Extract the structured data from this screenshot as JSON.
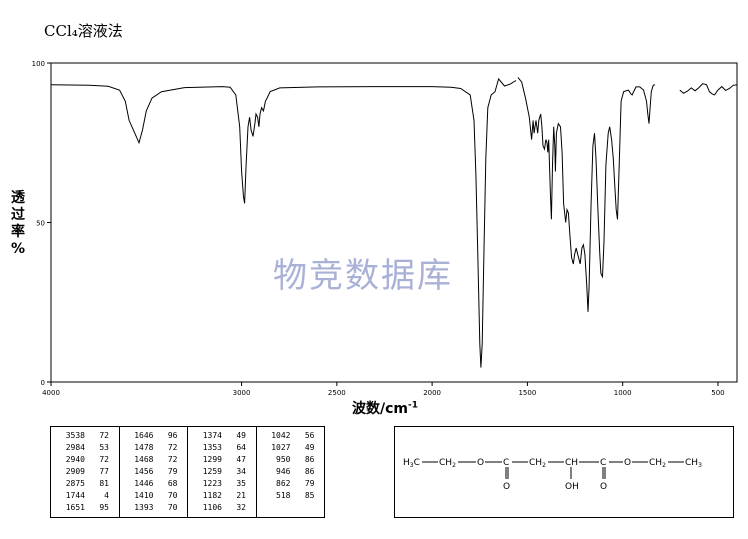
{
  "title": "CCl₄溶液法",
  "watermark": "物竞数据库",
  "ylabel_chars": [
    "透",
    "过",
    "率",
    "%"
  ],
  "xlabel_main": "波数/cm",
  "xlabel_sup": "-1",
  "chart_data": {
    "type": "line",
    "xlim": [
      4000,
      400
    ],
    "ylim": [
      0,
      100
    ],
    "x_ticks": [
      4000,
      3000,
      2500,
      2000,
      1500,
      1000,
      500
    ],
    "y_ticks": [
      0,
      50,
      100
    ],
    "grid": false,
    "segments": [
      [
        [
          4000,
          93.2
        ],
        [
          3800,
          93
        ],
        [
          3700,
          92.7
        ],
        [
          3640,
          91.5
        ],
        [
          3610,
          88
        ],
        [
          3590,
          82
        ],
        [
          3560,
          78
        ],
        [
          3538,
          75
        ],
        [
          3520,
          79
        ],
        [
          3500,
          85
        ],
        [
          3470,
          89
        ],
        [
          3420,
          91
        ],
        [
          3300,
          92.3
        ],
        [
          3100,
          92.6
        ],
        [
          3060,
          92.4
        ],
        [
          3030,
          90
        ],
        [
          3010,
          80
        ],
        [
          3000,
          66
        ],
        [
          2990,
          58
        ],
        [
          2984,
          56
        ],
        [
          2976,
          68
        ],
        [
          2966,
          80
        ],
        [
          2958,
          83
        ],
        [
          2950,
          79
        ],
        [
          2940,
          77
        ],
        [
          2930,
          81
        ],
        [
          2924,
          84
        ],
        [
          2916,
          83
        ],
        [
          2909,
          80
        ],
        [
          2903,
          84
        ],
        [
          2895,
          86
        ],
        [
          2885,
          85
        ],
        [
          2875,
          88
        ],
        [
          2866,
          89
        ],
        [
          2850,
          91
        ],
        [
          2800,
          92.2
        ],
        [
          2600,
          92.5
        ],
        [
          2300,
          92.6
        ],
        [
          2000,
          92.6
        ],
        [
          1900,
          92.4
        ],
        [
          1850,
          92
        ],
        [
          1800,
          90
        ],
        [
          1780,
          82
        ],
        [
          1770,
          65
        ],
        [
          1760,
          40
        ],
        [
          1750,
          12
        ],
        [
          1744,
          4.5
        ],
        [
          1737,
          12
        ],
        [
          1728,
          40
        ],
        [
          1718,
          70
        ],
        [
          1708,
          86
        ],
        [
          1690,
          90
        ],
        [
          1670,
          91
        ],
        [
          1651,
          95
        ],
        [
          1620,
          92.8
        ],
        [
          1590,
          93.4
        ],
        [
          1560,
          94.5
        ]
      ],
      [
        [
          1550,
          95.5
        ],
        [
          1530,
          94
        ],
        [
          1510,
          89
        ],
        [
          1490,
          83
        ],
        [
          1478,
          76
        ],
        [
          1470,
          82
        ],
        [
          1465,
          78
        ],
        [
          1460,
          80
        ],
        [
          1455,
          82
        ],
        [
          1446,
          78
        ],
        [
          1440,
          82
        ],
        [
          1430,
          84
        ],
        [
          1424,
          80
        ],
        [
          1418,
          74
        ],
        [
          1410,
          73
        ],
        [
          1403,
          76
        ],
        [
          1397,
          75
        ],
        [
          1393,
          72
        ],
        [
          1388,
          76
        ],
        [
          1380,
          60
        ],
        [
          1374,
          51
        ],
        [
          1368,
          68
        ],
        [
          1362,
          80
        ],
        [
          1356,
          74
        ],
        [
          1353,
          66
        ],
        [
          1348,
          78
        ],
        [
          1338,
          81
        ],
        [
          1326,
          80
        ],
        [
          1318,
          72
        ],
        [
          1310,
          56
        ],
        [
          1299,
          50
        ],
        [
          1292,
          54
        ],
        [
          1285,
          53
        ],
        [
          1277,
          46
        ],
        [
          1268,
          39
        ],
        [
          1259,
          37
        ],
        [
          1252,
          40
        ],
        [
          1244,
          42
        ],
        [
          1236,
          40
        ],
        [
          1223,
          37
        ],
        [
          1214,
          42
        ],
        [
          1206,
          43
        ],
        [
          1198,
          40
        ],
        [
          1188,
          30
        ],
        [
          1182,
          22
        ],
        [
          1176,
          30
        ],
        [
          1166,
          55
        ],
        [
          1156,
          74
        ],
        [
          1148,
          78
        ],
        [
          1140,
          70
        ],
        [
          1130,
          54
        ],
        [
          1120,
          40
        ],
        [
          1114,
          34
        ],
        [
          1106,
          33
        ],
        [
          1098,
          44
        ],
        [
          1088,
          68
        ],
        [
          1076,
          78
        ],
        [
          1068,
          80
        ],
        [
          1058,
          76
        ],
        [
          1049,
          70
        ],
        [
          1042,
          62
        ],
        [
          1034,
          54
        ],
        [
          1027,
          51
        ],
        [
          1018,
          68
        ],
        [
          1008,
          88
        ],
        [
          995,
          91
        ],
        [
          970,
          91.5
        ],
        [
          955,
          90.2
        ],
        [
          950,
          90
        ],
        [
          946,
          90.6
        ],
        [
          930,
          92.5
        ],
        [
          910,
          92.5
        ],
        [
          890,
          91.5
        ],
        [
          875,
          88
        ],
        [
          868,
          84
        ],
        [
          862,
          81
        ],
        [
          856,
          86
        ],
        [
          850,
          91
        ],
        [
          840,
          93
        ],
        [
          830,
          93.2
        ]
      ],
      [
        [
          700,
          91.5
        ],
        [
          680,
          90.5
        ],
        [
          660,
          91.2
        ],
        [
          640,
          92.2
        ],
        [
          620,
          91.3
        ],
        [
          600,
          92.3
        ],
        [
          580,
          93.5
        ],
        [
          560,
          93.2
        ],
        [
          545,
          91
        ],
        [
          530,
          90.3
        ],
        [
          518,
          90
        ],
        [
          500,
          91.5
        ],
        [
          480,
          92.6
        ],
        [
          460,
          91.4
        ],
        [
          440,
          92
        ],
        [
          420,
          93
        ],
        [
          400,
          93.2
        ]
      ]
    ]
  },
  "peak_table": [
    [
      [
        "3538",
        "72"
      ],
      [
        "2984",
        "53"
      ],
      [
        "2940",
        "72"
      ],
      [
        "2909",
        "77"
      ],
      [
        "2875",
        "81"
      ],
      [
        "1744",
        "4"
      ],
      [
        "1651",
        "95"
      ]
    ],
    [
      [
        "1646",
        "96"
      ],
      [
        "1478",
        "72"
      ],
      [
        "1468",
        "72"
      ],
      [
        "1456",
        "79"
      ],
      [
        "1446",
        "68"
      ],
      [
        "1410",
        "70"
      ],
      [
        "1393",
        "70"
      ]
    ],
    [
      [
        "1374",
        "49"
      ],
      [
        "1353",
        "64"
      ],
      [
        "1299",
        "47"
      ],
      [
        "1259",
        "34"
      ],
      [
        "1223",
        "35"
      ],
      [
        "1182",
        "21"
      ],
      [
        "1106",
        "32"
      ]
    ],
    [
      [
        "1042",
        "56"
      ],
      [
        "1027",
        "49"
      ],
      [
        "950",
        "86"
      ],
      [
        "946",
        "86"
      ],
      [
        "862",
        "79"
      ],
      [
        "518",
        "85"
      ]
    ]
  ],
  "structure": {
    "h3c": "H",
    "sub3": "3",
    "c": "C",
    "ch2": "CH",
    "sub2": "2",
    "o": "O",
    "ch": "CH",
    "ch3": "CH",
    "oh": "OH"
  }
}
